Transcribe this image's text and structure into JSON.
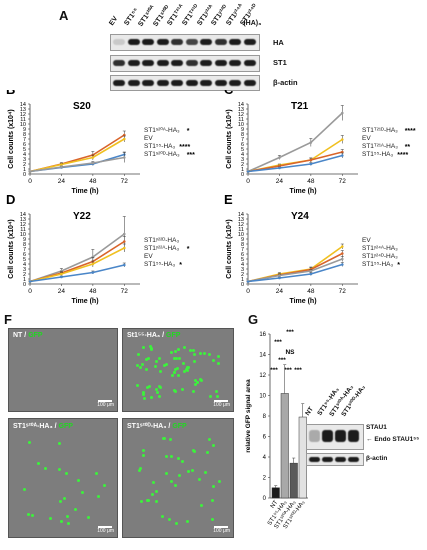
{
  "panel_a": {
    "letter": "A",
    "lanes": [
      "EV",
      "ST1⁵⁵",
      "ST1ˢ²⁰ᴬ",
      "ST1ˢ²⁰ᴰ",
      "ST1ᵀ²¹ᴬ",
      "ST1ᵀ²¹ᴰ",
      "ST1ʸ²²ᴬ",
      "ST1ʸ²²ᴰ",
      "ST1ʸ²⁴ᴬ",
      "ST1ʸ²⁴ᴰ"
    ],
    "tag": "-(HA)₃",
    "blots": [
      "HA",
      "ST1",
      "β-actin"
    ]
  },
  "panel_f": {
    "letter": "F",
    "tiles": [
      {
        "name": "NT",
        "marker": "GFP",
        "scale": "100 μm"
      },
      {
        "name": "St1⁵⁵-HA₃",
        "marker": "GFP",
        "scale": "100 μm"
      },
      {
        "name": "ST1ˢ²⁰ᴬ-HA₃",
        "marker": "GFP",
        "scale": "100 μm"
      },
      {
        "name": "ST1ˢ²⁰ᴰ-HA₃",
        "marker": "GFP",
        "scale": "100 μm"
      }
    ]
  },
  "panel_g": {
    "letter": "G",
    "ylabel": "relative GFP signal area",
    "sig": [
      "***",
      "***",
      "NS",
      "***",
      "***",
      "***",
      "***"
    ],
    "blot_lanes": [
      "NT",
      "ST1⁵⁵-HA₃",
      "ST1ˢ²⁰ᴬ-HA₃",
      "ST1ˢ²⁰ᴰ-HA₃"
    ],
    "blot_labels": [
      "STAU1",
      "Endo STAU1⁵⁵",
      "β-actin"
    ]
  },
  "chart_data": [
    {
      "panel": "B",
      "type": "line",
      "title": "S20",
      "xlabel": "Time (h)",
      "ylabel": "Cell counts (x10⁴)",
      "x": [
        0,
        24,
        48,
        72
      ],
      "xlim": [
        0,
        84
      ],
      "ylim": [
        0,
        14
      ],
      "xticks": [
        "0",
        "24",
        "48",
        "72"
      ],
      "yticks": [
        "0",
        "1",
        "2",
        "3",
        "4",
        "5",
        "6",
        "7",
        "8",
        "9",
        "10",
        "11",
        "12",
        "13",
        "14"
      ],
      "series": [
        {
          "name": "ST1ˢ²⁰ᴬ-HA₃",
          "color": "#d9642a",
          "values": [
            0.5,
            2.0,
            3.8,
            7.8
          ],
          "err": [
            0.1,
            0.3,
            0.7,
            0.8
          ],
          "sig": "*"
        },
        {
          "name": "EV",
          "color": "#f0c020",
          "values": [
            0.5,
            1.9,
            3.3,
            7.0
          ],
          "err": [
            0.1,
            0.2,
            0.5,
            0.6
          ],
          "sig": ""
        },
        {
          "name": "ST1⁵⁵-HA₃",
          "color": "#4a86c8",
          "values": [
            0.5,
            1.3,
            2.0,
            3.9
          ],
          "err": [
            0.1,
            0.2,
            0.3,
            0.5
          ],
          "sig": "****"
        },
        {
          "name": "ST1ˢ²⁰ᴰ-HA₃",
          "color": "#9a9a9a",
          "values": [
            0.5,
            1.4,
            2.2,
            3.3
          ],
          "err": [
            0.1,
            0.2,
            0.3,
            1.0
          ],
          "sig": "***"
        }
      ]
    },
    {
      "panel": "C",
      "type": "line",
      "title": "T21",
      "xlabel": "Time (h)",
      "ylabel": "Cell counts (x10⁴)",
      "x": [
        0,
        24,
        48,
        72
      ],
      "xlim": [
        0,
        84
      ],
      "ylim": [
        0,
        14
      ],
      "xticks": [
        "0",
        "24",
        "48",
        "72"
      ],
      "yticks": [
        "0",
        "1",
        "2",
        "3",
        "4",
        "5",
        "6",
        "7",
        "8",
        "9",
        "10",
        "11",
        "12",
        "13",
        "14"
      ],
      "series": [
        {
          "name": "ST1ᵀ²¹ᴰ-HA₃",
          "color": "#9a9a9a",
          "values": [
            0.5,
            3.3,
            6.3,
            12.2
          ],
          "err": [
            0.1,
            0.4,
            0.8,
            1.5
          ],
          "sig": "****"
        },
        {
          "name": "EV",
          "color": "#f0c020",
          "values": [
            0.5,
            1.8,
            2.8,
            6.9
          ],
          "err": [
            0.1,
            0.2,
            0.4,
            0.8
          ],
          "sig": ""
        },
        {
          "name": "ST1ᵀ²¹ᴬ-HA₃",
          "color": "#d9642a",
          "values": [
            0.5,
            1.6,
            2.8,
            4.4
          ],
          "err": [
            0.1,
            0.2,
            0.4,
            0.5
          ],
          "sig": "**"
        },
        {
          "name": "ST1⁵⁵-HA₃",
          "color": "#4a86c8",
          "values": [
            0.5,
            1.2,
            2.0,
            3.7
          ],
          "err": [
            0.1,
            0.2,
            0.3,
            0.5
          ],
          "sig": "****"
        }
      ]
    },
    {
      "panel": "D",
      "type": "line",
      "title": "Y22",
      "xlabel": "Time (h)",
      "ylabel": "Cell counts (x10⁴)",
      "x": [
        0,
        24,
        48,
        72
      ],
      "xlim": [
        0,
        84
      ],
      "ylim": [
        0,
        14
      ],
      "xticks": [
        "0",
        "24",
        "48",
        "72"
      ],
      "yticks": [
        "0",
        "1",
        "2",
        "3",
        "4",
        "5",
        "6",
        "7",
        "8",
        "9",
        "10",
        "11",
        "12",
        "13",
        "14"
      ],
      "series": [
        {
          "name": "ST1ʸ²²ᴰ-HA₃",
          "color": "#9a9a9a",
          "values": [
            0.5,
            2.6,
            5.4,
            10.0
          ],
          "err": [
            0.1,
            0.5,
            1.5,
            3.5
          ],
          "sig": ""
        },
        {
          "name": "ST1ʸ²²ᴬ-HA₃",
          "color": "#d9642a",
          "values": [
            0.5,
            2.2,
            4.5,
            8.5
          ],
          "err": [
            0.1,
            0.3,
            0.8,
            1.0
          ],
          "sig": "*"
        },
        {
          "name": "EV",
          "color": "#f0c020",
          "values": [
            0.5,
            2.0,
            4.0,
            7.2
          ],
          "err": [
            0.1,
            0.3,
            0.6,
            0.8
          ],
          "sig": ""
        },
        {
          "name": "ST1⁵⁵-HA₃",
          "color": "#4a86c8",
          "values": [
            0.5,
            1.4,
            2.3,
            3.8
          ],
          "err": [
            0.1,
            0.2,
            0.3,
            0.4
          ],
          "sig": "*"
        }
      ]
    },
    {
      "panel": "E",
      "type": "line",
      "title": "Y24",
      "xlabel": "Time (h)",
      "ylabel": "Cell counts (x10⁴)",
      "x": [
        0,
        24,
        48,
        72
      ],
      "xlim": [
        0,
        84
      ],
      "ylim": [
        0,
        14
      ],
      "xticks": [
        "0",
        "24",
        "48",
        "72"
      ],
      "yticks": [
        "0",
        "1",
        "2",
        "3",
        "4",
        "5",
        "6",
        "7",
        "8",
        "9",
        "10",
        "11",
        "12",
        "13",
        "14"
      ],
      "series": [
        {
          "name": "EV",
          "color": "#f0c020",
          "values": [
            0.5,
            2.0,
            3.0,
            7.5
          ],
          "err": [
            0.1,
            0.3,
            0.4,
            0.5
          ],
          "sig": ""
        },
        {
          "name": "ST1ʸ²⁴ᴬ-HA₃",
          "color": "#d9642a",
          "values": [
            0.5,
            1.8,
            2.9,
            6.1
          ],
          "err": [
            0.1,
            0.3,
            0.4,
            0.6
          ],
          "sig": ""
        },
        {
          "name": "ST1ʸ²⁴ᴰ-HA₃",
          "color": "#9a9a9a",
          "values": [
            0.5,
            1.7,
            2.6,
            5.0
          ],
          "err": [
            0.1,
            0.2,
            0.3,
            0.5
          ],
          "sig": ""
        },
        {
          "name": "ST1⁵⁵-HA₃",
          "color": "#4a86c8",
          "values": [
            0.5,
            1.2,
            2.0,
            3.9
          ],
          "err": [
            0.1,
            0.2,
            0.3,
            0.4
          ],
          "sig": "*"
        }
      ]
    },
    {
      "panel": "G",
      "type": "bar",
      "categories": [
        "NT",
        "ST1⁵⁵-HA₃",
        "ST1ˢ²⁰ᴬ-HA₃",
        "ST1ˢ²⁰ᴰ-HA₃"
      ],
      "values": [
        1.0,
        10.2,
        3.4,
        7.9
      ],
      "err": [
        0.2,
        2.8,
        0.5,
        1.3
      ],
      "colors": [
        "#1a1a1a",
        "#a8a8a8",
        "#5a5a5a",
        "#e2e2e2"
      ],
      "ylabel": "relative GFP signal area",
      "ylim": [
        0,
        16
      ],
      "yticks": [
        "0",
        "2",
        "4",
        "6",
        "8",
        "10",
        "12",
        "14",
        "16"
      ]
    }
  ]
}
